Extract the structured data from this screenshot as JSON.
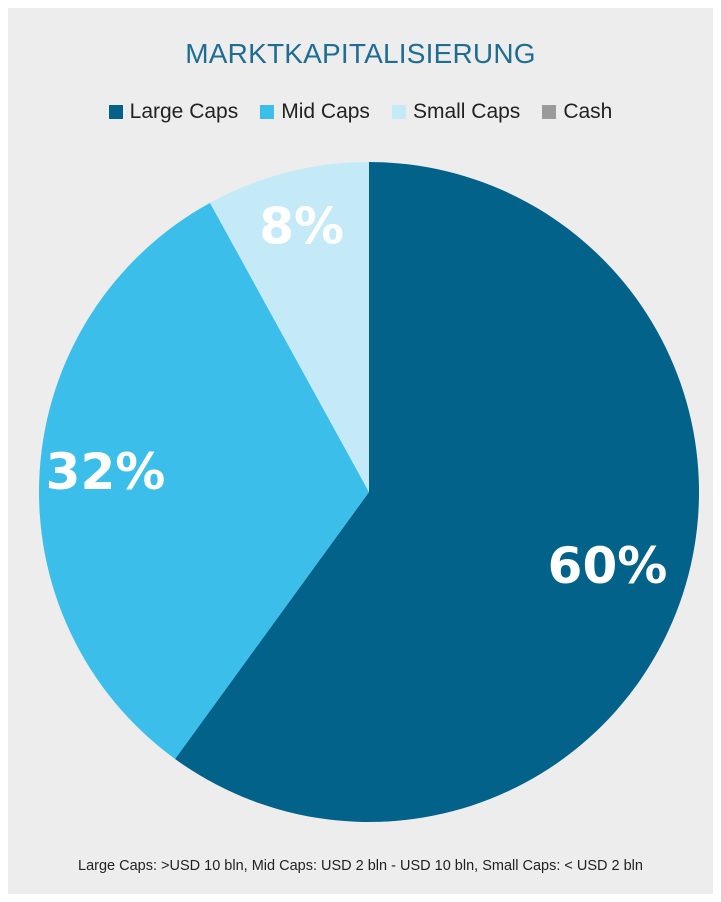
{
  "chart_data": {
    "type": "pie",
    "title": "MARKTKAPITALISIERUNG",
    "categories": [
      "Large Caps",
      "Mid Caps",
      "Small Caps",
      "Cash"
    ],
    "values": [
      60,
      32,
      8,
      0
    ],
    "value_labels": [
      "60%",
      "32%",
      "8%",
      ""
    ],
    "colors": [
      "#02628a",
      "#3bbfea",
      "#c5eaf7",
      "#9a9a9a"
    ],
    "legend_position": "top",
    "footnote": "Large Caps: >USD 10 bln, Mid Caps: USD 2 bln - USD 10 bln, Small Caps: < USD 2 bln"
  }
}
